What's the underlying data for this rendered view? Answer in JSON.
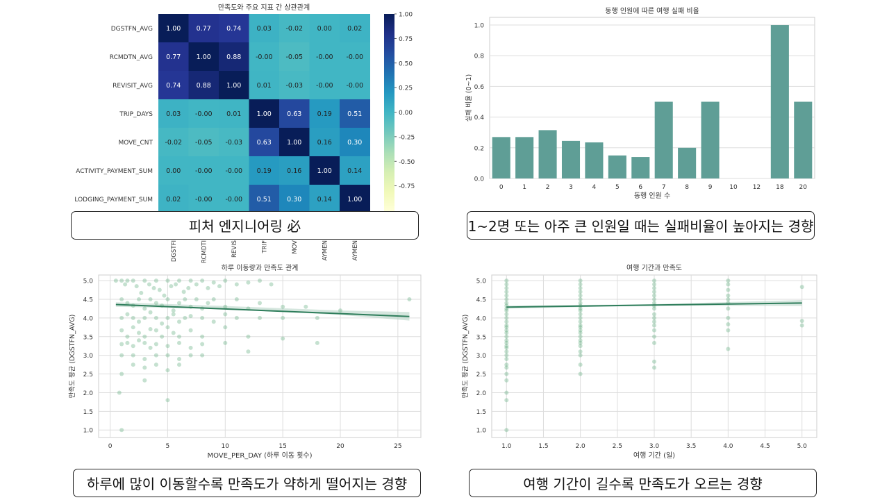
{
  "captions": {
    "heatmap": "피처 엔지니어링 必",
    "bar": "1~2명 또는 아주 큰 인원일 때는 실패비율이 높아지는 경향",
    "scatter_move": "하루에 많이 이동할수록 만족도가 약하게 떨어지는 경향",
    "scatter_trip": "여행 기간이 길수록 만족도가 오르는 경향"
  },
  "colors": {
    "bar": "#5f9e96",
    "scatter_point": "#6db38a",
    "regression_line": "#2e7d5b",
    "ci_band": "#b9d6c8",
    "grid": "#dddddd",
    "caption_border": "#222222"
  },
  "chart_data": [
    {
      "type": "heatmap",
      "title": "만족도와 주요 지표 간 상관관계",
      "row_labels": [
        "DGSTFN_AVG",
        "RCMDTN_AVG",
        "REVISIT_AVG",
        "TRIP_DAYS",
        "MOVE_CNT",
        "ACTIVITY_PAYMENT_SUM",
        "LODGING_PAYMENT_SUM"
      ],
      "col_labels_visible": [
        "DGSTFI",
        "RCMDTI",
        "REVIS",
        "TRIF",
        "MOV",
        "AYMEN",
        "AYMEN"
      ],
      "values": [
        [
          1.0,
          0.77,
          0.74,
          0.03,
          -0.02,
          0.0,
          0.02
        ],
        [
          0.77,
          1.0,
          0.88,
          -0.0,
          -0.05,
          -0.0,
          -0.0
        ],
        [
          0.74,
          0.88,
          1.0,
          0.01,
          -0.03,
          -0.0,
          -0.0
        ],
        [
          0.03,
          -0.0,
          0.01,
          1.0,
          0.63,
          0.19,
          0.51
        ],
        [
          -0.02,
          -0.05,
          -0.03,
          0.63,
          1.0,
          0.16,
          0.3
        ],
        [
          0.0,
          -0.0,
          -0.0,
          0.19,
          0.16,
          1.0,
          0.14
        ],
        [
          0.02,
          -0.0,
          -0.0,
          0.51,
          0.3,
          0.14,
          1.0
        ]
      ],
      "value_labels": [
        [
          "1.00",
          "0.77",
          "0.74",
          "0.03",
          "-0.02",
          "0.00",
          "0.02"
        ],
        [
          "0.77",
          "1.00",
          "0.88",
          "-0.00",
          "-0.05",
          "-0.00",
          "-0.00"
        ],
        [
          "0.74",
          "0.88",
          "1.00",
          "0.01",
          "-0.03",
          "-0.00",
          "-0.00"
        ],
        [
          "0.03",
          "-0.00",
          "0.01",
          "1.00",
          "0.63",
          "0.19",
          "0.51"
        ],
        [
          "-0.02",
          "-0.05",
          "-0.03",
          "0.63",
          "1.00",
          "0.16",
          "0.30"
        ],
        [
          "0.00",
          "-0.00",
          "-0.00",
          "0.19",
          "0.16",
          "1.00",
          "0.14"
        ],
        [
          "0.02",
          "-0.00",
          "-0.00",
          "0.51",
          "0.30",
          "0.14",
          "1.00"
        ]
      ],
      "colormap": "YlGnBu",
      "vmin": -1.0,
      "vmax": 1.0,
      "colorbar_ticks": [
        "1.00",
        "0.75",
        "0.50",
        "0.25",
        "0.00",
        "-0.25",
        "-0.50",
        "-0.75"
      ]
    },
    {
      "type": "bar",
      "title": "동행 인원에 따른 여행 실패 비율",
      "xlabel": "동행 인원 수",
      "ylabel": "실패 비율 (0~1)",
      "categories": [
        "0",
        "1",
        "2",
        "3",
        "4",
        "5",
        "6",
        "7",
        "8",
        "9",
        "10",
        "12",
        "18",
        "20"
      ],
      "values": [
        0.27,
        0.27,
        0.315,
        0.245,
        0.235,
        0.15,
        0.14,
        0.5,
        0.2,
        0.5,
        0.0,
        0.0,
        1.0,
        0.5
      ],
      "ylim": [
        0,
        1.05
      ],
      "yticks": [
        "0.0",
        "0.2",
        "0.4",
        "0.6",
        "0.8",
        "1.0"
      ],
      "grid": true
    },
    {
      "type": "scatter",
      "title": "하루 이동량과 만족도 관계",
      "xlabel": "MOVE_PER_DAY (하루 이동 횟수)",
      "ylabel": "만족도 평균 (DGSTFN_AVG)",
      "xlim": [
        -1,
        27
      ],
      "ylim": [
        0.8,
        5.15
      ],
      "xticks": [
        "0",
        "5",
        "10",
        "15",
        "20",
        "25"
      ],
      "yticks": [
        "1.0",
        "1.5",
        "2.0",
        "2.5",
        "3.0",
        "3.5",
        "4.0",
        "4.5",
        "5.0"
      ],
      "regression": {
        "x": [
          0.5,
          26
        ],
        "y": [
          4.36,
          4.04
        ]
      },
      "ci_band": {
        "x": [
          0.5,
          10,
          20,
          26
        ],
        "upper": [
          4.42,
          4.32,
          4.2,
          4.16
        ],
        "lower": [
          4.3,
          4.24,
          4.08,
          3.93
        ]
      },
      "points": [
        [
          0.5,
          5.0
        ],
        [
          1,
          5.0
        ],
        [
          1.3,
          4.9
        ],
        [
          1.5,
          5.0
        ],
        [
          2,
          5.0
        ],
        [
          2.3,
          4.85
        ],
        [
          2.7,
          4.67
        ],
        [
          3,
          5.0
        ],
        [
          3.4,
          4.9
        ],
        [
          3.8,
          4.8
        ],
        [
          4,
          5.0
        ],
        [
          4.3,
          4.75
        ],
        [
          4.7,
          4.6
        ],
        [
          5,
          5.0
        ],
        [
          5.3,
          4.85
        ],
        [
          5.7,
          4.9
        ],
        [
          6,
          5.0
        ],
        [
          6.4,
          4.7
        ],
        [
          6.8,
          4.8
        ],
        [
          7,
          5.0
        ],
        [
          7.5,
          4.9
        ],
        [
          8,
          5.0
        ],
        [
          8.5,
          4.8
        ],
        [
          9,
          4.95
        ],
        [
          9.5,
          4.85
        ],
        [
          10,
          5.0
        ],
        [
          11,
          4.9
        ],
        [
          12,
          4.95
        ],
        [
          13,
          5.0
        ],
        [
          14,
          4.9
        ],
        [
          1,
          4.5
        ],
        [
          1.5,
          4.4
        ],
        [
          2,
          4.33
        ],
        [
          2.5,
          4.5
        ],
        [
          3,
          4.25
        ],
        [
          3.5,
          4.5
        ],
        [
          4,
          4.4
        ],
        [
          4.5,
          4.33
        ],
        [
          5,
          4.5
        ],
        [
          5.5,
          4.2
        ],
        [
          6,
          4.4
        ],
        [
          6.5,
          4.5
        ],
        [
          7,
          4.3
        ],
        [
          7.5,
          4.5
        ],
        [
          8,
          4.25
        ],
        [
          8.5,
          4.4
        ],
        [
          9,
          4.5
        ],
        [
          10,
          4.3
        ],
        [
          11,
          4.5
        ],
        [
          12,
          4.25
        ],
        [
          13,
          4.4
        ],
        [
          15,
          4.3
        ],
        [
          17,
          4.3
        ],
        [
          20,
          4.2
        ],
        [
          1,
          4.0
        ],
        [
          1.5,
          4.1
        ],
        [
          2,
          4.0
        ],
        [
          2.5,
          3.9
        ],
        [
          3,
          4.0
        ],
        [
          3.5,
          4.15
        ],
        [
          4,
          4.0
        ],
        [
          4.5,
          3.85
        ],
        [
          5,
          4.0
        ],
        [
          5.5,
          4.1
        ],
        [
          6,
          3.9
        ],
        [
          6.5,
          4.0
        ],
        [
          7,
          4.05
        ],
        [
          8,
          4.0
        ],
        [
          9,
          3.9
        ],
        [
          10,
          4.1
        ],
        [
          11,
          4.0
        ],
        [
          13,
          4.0
        ],
        [
          15,
          4.0
        ],
        [
          18,
          4.0
        ],
        [
          1,
          3.67
        ],
        [
          1.5,
          3.5
        ],
        [
          2,
          3.75
        ],
        [
          2.5,
          3.6
        ],
        [
          3,
          3.5
        ],
        [
          3.5,
          3.7
        ],
        [
          4,
          3.67
        ],
        [
          4.5,
          3.5
        ],
        [
          5,
          3.75
        ],
        [
          5.5,
          3.6
        ],
        [
          6,
          3.5
        ],
        [
          7,
          3.67
        ],
        [
          8,
          3.5
        ],
        [
          10,
          3.75
        ],
        [
          12,
          3.5
        ],
        [
          15,
          3.45
        ],
        [
          1,
          3.3
        ],
        [
          1.5,
          3.33
        ],
        [
          2,
          3.25
        ],
        [
          2.5,
          3.4
        ],
        [
          3,
          3.33
        ],
        [
          3.5,
          3.2
        ],
        [
          4,
          3.3
        ],
        [
          5,
          3.25
        ],
        [
          6,
          3.33
        ],
        [
          7,
          3.2
        ],
        [
          8,
          3.3
        ],
        [
          10,
          3.33
        ],
        [
          12,
          3.1
        ],
        [
          18,
          3.33
        ],
        [
          1,
          3.0
        ],
        [
          2,
          3.0
        ],
        [
          3,
          2.9
        ],
        [
          4,
          3.0
        ],
        [
          5,
          3.0
        ],
        [
          6,
          2.9
        ],
        [
          7,
          3.0
        ],
        [
          8,
          3.0
        ],
        [
          2,
          2.75
        ],
        [
          3,
          2.67
        ],
        [
          4,
          2.75
        ],
        [
          5,
          2.6
        ],
        [
          6,
          2.75
        ],
        [
          1,
          2.5
        ],
        [
          3,
          2.33
        ],
        [
          0.8,
          2.0
        ],
        [
          5,
          1.8
        ],
        [
          1,
          1.0
        ],
        [
          26,
          4.5
        ]
      ]
    },
    {
      "type": "scatter",
      "title": "여행 기간과 만족도",
      "xlabel": "여행 기간 (일)",
      "ylabel": "만족도 평균 (DGSTFN_AVG)",
      "xlim": [
        0.8,
        5.2
      ],
      "ylim": [
        0.8,
        5.15
      ],
      "xticks": [
        "1.0",
        "1.5",
        "2.0",
        "2.5",
        "3.0",
        "3.5",
        "4.0",
        "4.5",
        "5.0"
      ],
      "yticks": [
        "1.0",
        "1.5",
        "2.0",
        "2.5",
        "3.0",
        "3.5",
        "4.0",
        "4.5",
        "5.0"
      ],
      "regression": {
        "x": [
          1,
          5
        ],
        "y": [
          4.29,
          4.4
        ]
      },
      "ci_band": {
        "x": [
          1,
          3,
          5
        ],
        "upper": [
          4.33,
          4.37,
          4.48
        ],
        "lower": [
          4.25,
          4.33,
          4.32
        ]
      },
      "points": [
        [
          1,
          5.0
        ],
        [
          1,
          4.9
        ],
        [
          1,
          4.8
        ],
        [
          1,
          4.7
        ],
        [
          1,
          4.6
        ],
        [
          1,
          4.5
        ],
        [
          1,
          4.4
        ],
        [
          1,
          4.33
        ],
        [
          1,
          4.25
        ],
        [
          1,
          4.2
        ],
        [
          1,
          4.1
        ],
        [
          1,
          4.0
        ],
        [
          1,
          3.9
        ],
        [
          1,
          3.8
        ],
        [
          1,
          3.75
        ],
        [
          1,
          3.67
        ],
        [
          1,
          3.6
        ],
        [
          1,
          3.5
        ],
        [
          1,
          3.4
        ],
        [
          1,
          3.33
        ],
        [
          1,
          3.25
        ],
        [
          1,
          3.2
        ],
        [
          1,
          3.1
        ],
        [
          1,
          3.0
        ],
        [
          1,
          2.9
        ],
        [
          1,
          2.75
        ],
        [
          1,
          2.67
        ],
        [
          1,
          2.5
        ],
        [
          1,
          2.33
        ],
        [
          1,
          2.0
        ],
        [
          1,
          1.8
        ],
        [
          1,
          1.0
        ],
        [
          2,
          5.0
        ],
        [
          2,
          4.9
        ],
        [
          2,
          4.8
        ],
        [
          2,
          4.7
        ],
        [
          2,
          4.6
        ],
        [
          2,
          4.5
        ],
        [
          2,
          4.4
        ],
        [
          2,
          4.33
        ],
        [
          2,
          4.25
        ],
        [
          2,
          4.2
        ],
        [
          2,
          4.1
        ],
        [
          2,
          4.0
        ],
        [
          2,
          3.9
        ],
        [
          2,
          3.8
        ],
        [
          2,
          3.75
        ],
        [
          2,
          3.67
        ],
        [
          2,
          3.6
        ],
        [
          2,
          3.5
        ],
        [
          2,
          3.4
        ],
        [
          2,
          3.33
        ],
        [
          2,
          3.25
        ],
        [
          2,
          3.1
        ],
        [
          2,
          3.0
        ],
        [
          2,
          2.75
        ],
        [
          2,
          2.5
        ],
        [
          3,
          5.0
        ],
        [
          3,
          4.9
        ],
        [
          3,
          4.8
        ],
        [
          3,
          4.7
        ],
        [
          3,
          4.6
        ],
        [
          3,
          4.5
        ],
        [
          3,
          4.4
        ],
        [
          3,
          4.33
        ],
        [
          3,
          4.25
        ],
        [
          3,
          4.1
        ],
        [
          3,
          4.0
        ],
        [
          3,
          3.9
        ],
        [
          3,
          3.8
        ],
        [
          3,
          3.67
        ],
        [
          3,
          3.5
        ],
        [
          3,
          3.33
        ],
        [
          3,
          2.83
        ],
        [
          3,
          2.67
        ],
        [
          4,
          5.0
        ],
        [
          4,
          4.9
        ],
        [
          4,
          4.75
        ],
        [
          4,
          4.6
        ],
        [
          4,
          4.5
        ],
        [
          4,
          4.4
        ],
        [
          4,
          4.25
        ],
        [
          4,
          4.0
        ],
        [
          4,
          3.83
        ],
        [
          4,
          3.67
        ],
        [
          4,
          3.17
        ],
        [
          5,
          4.83
        ],
        [
          5,
          3.92
        ],
        [
          5,
          3.8
        ]
      ]
    }
  ]
}
